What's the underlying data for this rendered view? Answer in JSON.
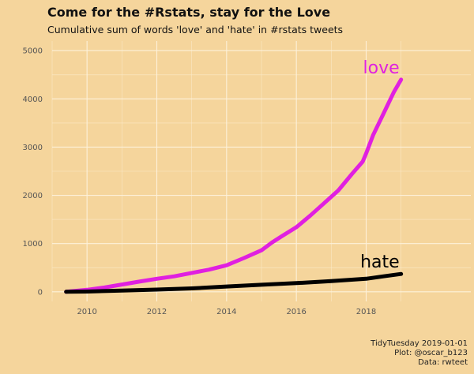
{
  "header": {
    "title": "Come for the #Rstats, stay for the Love",
    "subtitle": "Cumulative sum of words 'love' and 'hate' in #rstats tweets"
  },
  "caption": [
    "TidyTuesday 2019-01-01",
    "Plot: @oscar_b123",
    "Data: rwteet"
  ],
  "chart_data": {
    "type": "line",
    "title": "Come for the #Rstats, stay for the Love",
    "subtitle": "Cumulative sum of words 'love' and 'hate' in #rstats tweets",
    "xlabel": "",
    "ylabel": "",
    "xlim": [
      2009.0,
      2021.0
    ],
    "ylim": [
      -200,
      5200
    ],
    "xticks": [
      2010,
      2012,
      2014,
      2016,
      2018
    ],
    "yticks": [
      0,
      1000,
      2000,
      3000,
      4000,
      5000
    ],
    "grid": true,
    "legend": "direct labels at line ends",
    "series": [
      {
        "name": "love",
        "color": "#e020e0",
        "x": [
          2009.4,
          2010.0,
          2010.5,
          2011.0,
          2011.5,
          2012.0,
          2012.5,
          2013.0,
          2013.5,
          2014.0,
          2014.5,
          2015.0,
          2015.3,
          2015.6,
          2016.0,
          2016.4,
          2016.8,
          2017.2,
          2017.6,
          2017.9,
          2018.0,
          2018.2,
          2018.4,
          2018.6,
          2018.8,
          2019.0
        ],
        "y": [
          0,
          40,
          90,
          150,
          210,
          270,
          320,
          390,
          460,
          550,
          700,
          860,
          1020,
          1160,
          1340,
          1580,
          1840,
          2100,
          2450,
          2700,
          2870,
          3250,
          3550,
          3850,
          4150,
          4400
        ]
      },
      {
        "name": "hate",
        "color": "#000000",
        "x": [
          2009.4,
          2010.0,
          2011.0,
          2012.0,
          2013.0,
          2014.0,
          2015.0,
          2016.0,
          2017.0,
          2018.0,
          2018.5,
          2019.0
        ],
        "y": [
          0,
          5,
          25,
          45,
          70,
          110,
          145,
          180,
          220,
          270,
          320,
          370
        ]
      }
    ]
  }
}
